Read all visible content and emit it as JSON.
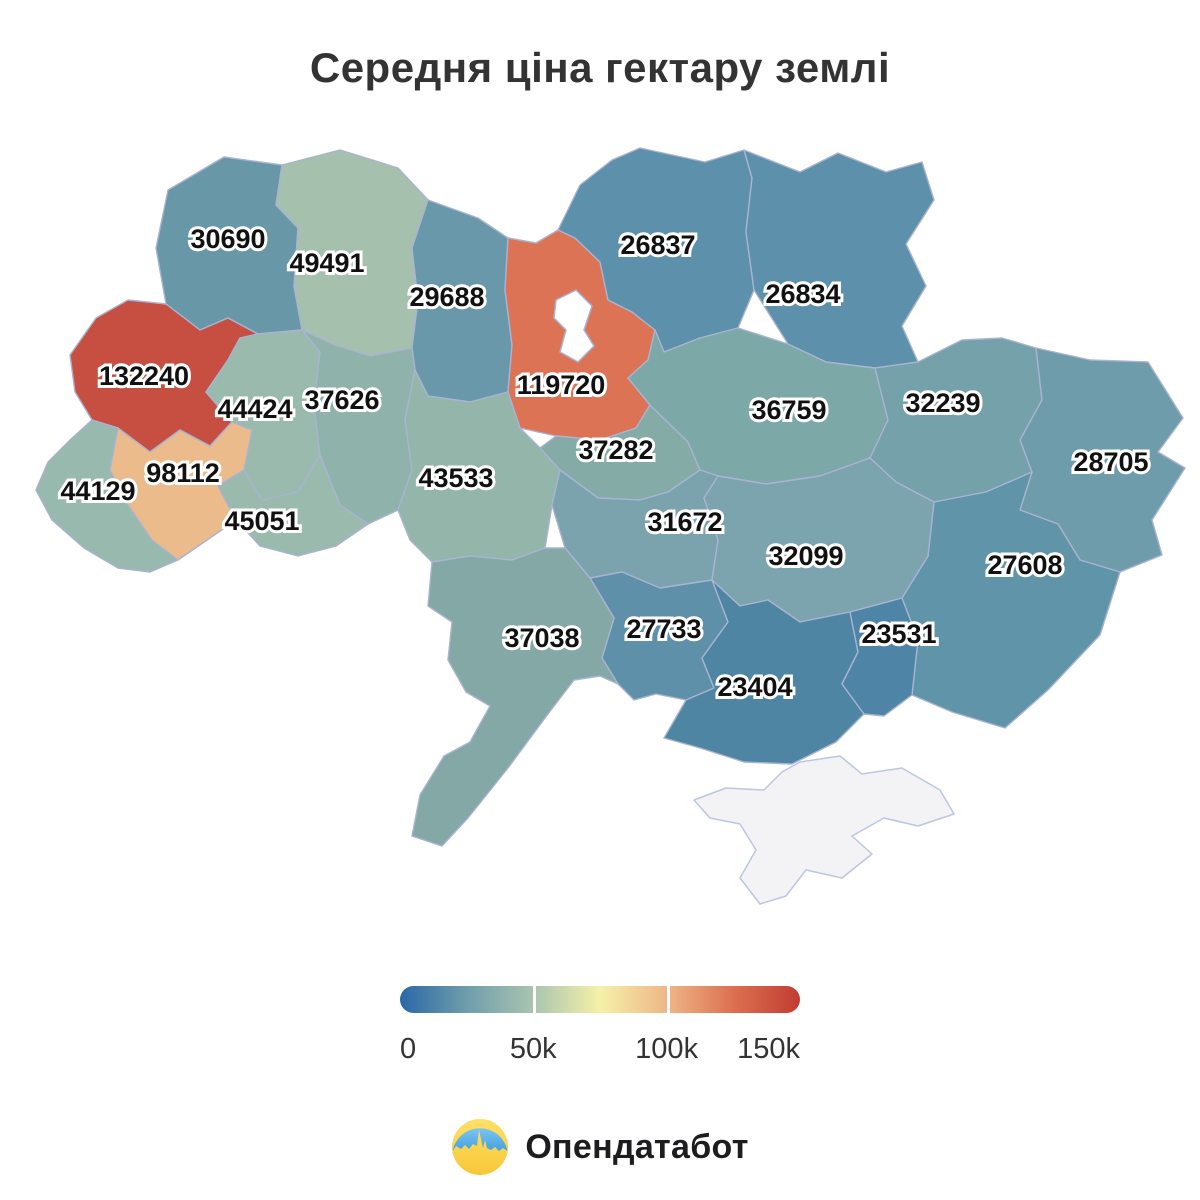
{
  "title": "Середня ціна гектару землі",
  "chart_data": {
    "type": "heatmap",
    "subtype": "choropleth-map-of-ukraine",
    "title": "Середня ціна гектару землі",
    "regions": [
      {
        "id": "volyn",
        "value": 30690,
        "color": "#6898a8"
      },
      {
        "id": "rivne",
        "value": 49491,
        "color": "#a5c0ad"
      },
      {
        "id": "zhytomyr",
        "value": 29688,
        "color": "#6998ab"
      },
      {
        "id": "kyiv",
        "value": 119720,
        "color": "#dd7355"
      },
      {
        "id": "chernihiv",
        "value": 26837,
        "color": "#5d90aa"
      },
      {
        "id": "sumy",
        "value": 26834,
        "color": "#5d90aa"
      },
      {
        "id": "lviv",
        "value": 132240,
        "color": "#c74f41"
      },
      {
        "id": "ternopil",
        "value": 44424,
        "color": "#9abaad"
      },
      {
        "id": "khmelnytskyi",
        "value": 37626,
        "color": "#8fb3ab"
      },
      {
        "id": "vinnytsia",
        "value": 43533,
        "color": "#93b5aa"
      },
      {
        "id": "cherkasy",
        "value": 37282,
        "color": "#85aba6"
      },
      {
        "id": "poltava",
        "value": 36759,
        "color": "#7da8a8"
      },
      {
        "id": "kharkiv",
        "value": 32239,
        "color": "#74a1aa"
      },
      {
        "id": "luhansk",
        "value": 28705,
        "color": "#6e9cab"
      },
      {
        "id": "donetsk",
        "value": 27608,
        "color": "#6094a9"
      },
      {
        "id": "zakarpattia",
        "value": 44129,
        "color": "#98b9ae"
      },
      {
        "id": "ivano-frankivsk",
        "value": 98112,
        "color": "#ecbb8b"
      },
      {
        "id": "chernivtsi",
        "value": 45051,
        "color": "#9abaae"
      },
      {
        "id": "kirovohrad",
        "value": 31672,
        "color": "#7aa3ad"
      },
      {
        "id": "dnipropetrovsk",
        "value": 32099,
        "color": "#7ca4ae"
      },
      {
        "id": "mykolaiv",
        "value": 27733,
        "color": "#5e90a9"
      },
      {
        "id": "odesa",
        "value": 37038,
        "color": "#84a8a5"
      },
      {
        "id": "kherson",
        "value": 23404,
        "color": "#4d85a3"
      },
      {
        "id": "zaporizhzhia",
        "value": 23531,
        "color": "#4e84a5"
      }
    ],
    "no_data_regions": [
      {
        "id": "crimea",
        "color": "#f3f3f6",
        "border": "#bcc6e2"
      },
      {
        "id": "kyiv-city",
        "color": "#ffffff",
        "border": "#a9b3d2"
      }
    ],
    "colorbar": {
      "range": [
        0,
        150000
      ],
      "tick_labels": [
        "0",
        "50k",
        "100k",
        "150k"
      ],
      "gradient": [
        "#2a68a7",
        "#6f9dab",
        "#a9c4b0",
        "#f5f1a8",
        "#eeb787",
        "#dc7050",
        "#c23c32"
      ]
    },
    "legend_position": "bottom-center"
  },
  "footer": {
    "brand": "Опендатабот",
    "logo_colors": {
      "blue": "#4fabe6",
      "blue_light": "#7cc4f0",
      "yellow": "#ffd84d",
      "yellow_deep": "#f7c837"
    }
  }
}
